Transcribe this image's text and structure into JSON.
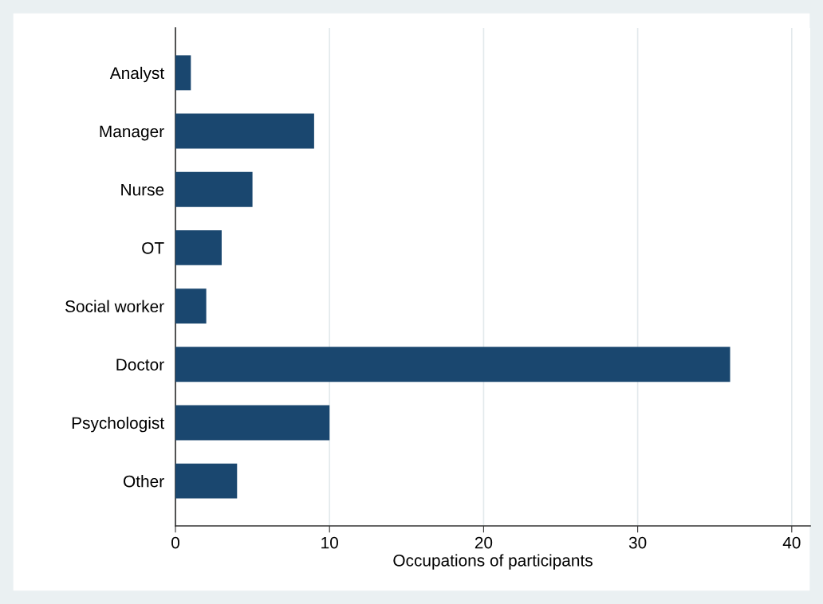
{
  "chart_data": {
    "type": "bar",
    "orientation": "horizontal",
    "xlabel": "Occupations of participants",
    "categories": [
      "Analyst",
      "Manager",
      "Nurse",
      "OT",
      "Social worker",
      "Doctor",
      "Psychologist",
      "Other"
    ],
    "values": [
      1,
      9,
      5,
      3,
      2,
      36,
      10,
      4
    ],
    "color": "#1a476f",
    "xlim": [
      0,
      41.2
    ],
    "xticks": [
      0,
      10,
      20,
      30,
      40
    ],
    "grid": "x"
  }
}
